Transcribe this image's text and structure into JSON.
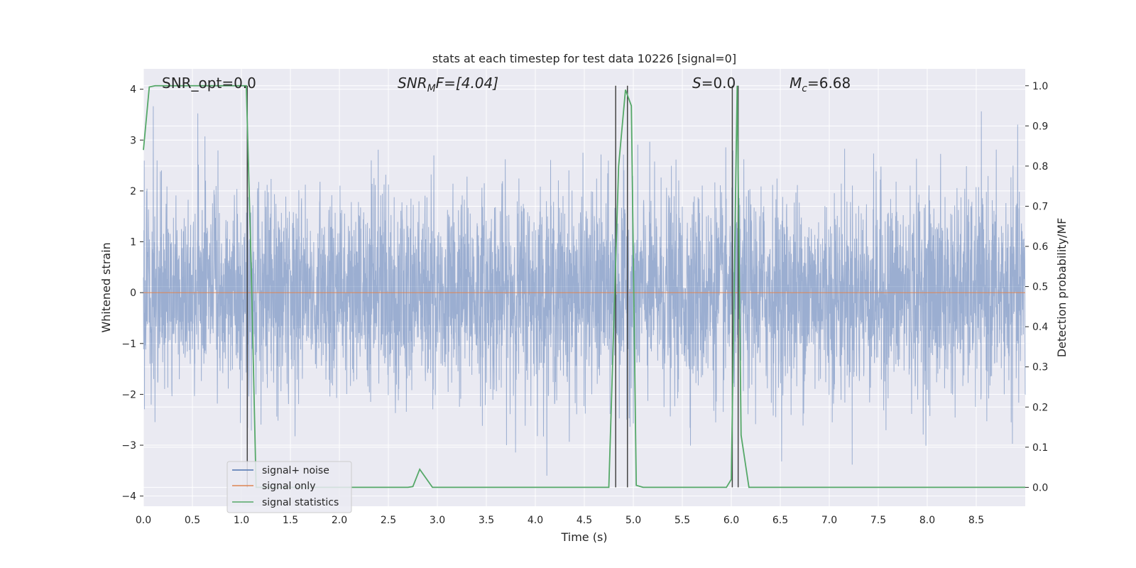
{
  "chart_data": {
    "type": "line",
    "title": "stats at each timestep for test data 10226 [signal=0]",
    "xlabel": "Time (s)",
    "ylabel_left": "Whitened strain",
    "ylabel_right": "Detection probability/MF",
    "xlim": [
      0,
      9.0
    ],
    "ylim_left": [
      -4.2,
      4.4
    ],
    "ylim_right": [
      -0.047,
      1.042
    ],
    "grid": true,
    "x_ticks": [
      "0.0",
      "0.5",
      "1.0",
      "1.5",
      "2.0",
      "2.5",
      "3.0",
      "3.5",
      "4.0",
      "4.5",
      "5.0",
      "5.5",
      "6.0",
      "6.5",
      "7.0",
      "7.5",
      "8.0",
      "8.5"
    ],
    "y_ticks_left": [
      "4",
      "3",
      "2",
      "1",
      "0",
      "−1",
      "−2",
      "−3",
      "−4"
    ],
    "y_ticks_right": [
      "1.0",
      "0.9",
      "0.8",
      "0.7",
      "0.6",
      "0.5",
      "0.4",
      "0.3",
      "0.2",
      "0.1",
      "0.0"
    ],
    "annotations": {
      "snr_opt": "SNR_opt=0.0",
      "snr_mf_prefix": "SNR",
      "snr_mf_sub": "M",
      "snr_mf_suffix": "F=[4.04]",
      "s_prefix": "S",
      "s_suffix": "=0.0",
      "mc_prefix": "M",
      "mc_sub": "c",
      "mc_suffix": "=6.68"
    },
    "legend": {
      "placement": "lower-left",
      "items": [
        {
          "label": "signal+ noise",
          "color": "#4c72b0"
        },
        {
          "label": "signal only",
          "color": "#dd8452"
        },
        {
          "label": "signal statistics",
          "color": "#55a868"
        }
      ]
    },
    "series": [
      {
        "name": "signal+ noise",
        "axis": "left",
        "color": "#4c72b0",
        "style": "dense-noise",
        "std": 1.0,
        "amplitude_range": [
          -3.6,
          3.9
        ]
      },
      {
        "name": "signal only",
        "axis": "left",
        "color": "#dd8452",
        "constant": 0
      },
      {
        "name": "signal statistics",
        "axis": "right",
        "color": "#55a868",
        "x": [
          0,
          0.06,
          0.12,
          0.2,
          1.0,
          1.05,
          1.1,
          1.15,
          1.25,
          2.7,
          2.75,
          2.82,
          2.95,
          4.75,
          4.85,
          4.92,
          4.98,
          5.03,
          5.1,
          5.95,
          6.0,
          6.06,
          6.1,
          6.18,
          9.0
        ],
        "y": [
          0.84,
          0.997,
          1.0,
          1.0,
          1.0,
          1.0,
          0.55,
          0.0,
          0.0,
          0.0,
          0.002,
          0.045,
          0.0,
          0.0,
          0.8,
          0.99,
          0.95,
          0.005,
          0.0,
          0.0,
          0.02,
          1.0,
          0.13,
          0.0,
          0.0
        ]
      }
    ],
    "vlines": [
      {
        "x": 1.06,
        "color": "#444444"
      },
      {
        "x": 4.82,
        "color": "#444444"
      },
      {
        "x": 4.94,
        "color": "#444444"
      },
      {
        "x": 6.01,
        "color": "#444444"
      },
      {
        "x": 6.07,
        "color": "#444444"
      }
    ],
    "colors": {
      "plot_background": "#eaeaf2",
      "grid": "#ffffff",
      "text": "#262626"
    }
  }
}
